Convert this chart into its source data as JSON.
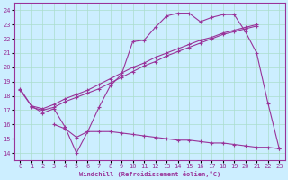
{
  "xlabel": "Windchill (Refroidissement éolien,°C)",
  "bg_color": "#cceeff",
  "line_color": "#993399",
  "grid_color": "#aaddcc",
  "x_ticks": [
    0,
    1,
    2,
    3,
    4,
    5,
    6,
    7,
    8,
    9,
    10,
    11,
    12,
    13,
    14,
    15,
    16,
    17,
    18,
    19,
    20,
    21,
    22,
    23
  ],
  "y_ticks": [
    14,
    15,
    16,
    17,
    18,
    19,
    20,
    21,
    22,
    23,
    24
  ],
  "xlim": [
    -0.5,
    23.5
  ],
  "ylim": [
    13.5,
    24.5
  ],
  "line_wavy_x": [
    0,
    1,
    2,
    3,
    4,
    5,
    6,
    7,
    8,
    9,
    10,
    11,
    12,
    13,
    14,
    15,
    16,
    17,
    18,
    19,
    20,
    21,
    22,
    23
  ],
  "line_wavy_y": [
    18.5,
    17.3,
    16.8,
    17.1,
    15.8,
    14.0,
    15.5,
    17.2,
    18.7,
    19.5,
    21.8,
    21.9,
    22.8,
    23.6,
    23.8,
    23.8,
    23.2,
    23.5,
    23.7,
    23.7,
    22.5,
    21.0,
    17.5,
    14.3
  ],
  "line_diag1_x": [
    0,
    1,
    2,
    3,
    4,
    5,
    6,
    7,
    8,
    9,
    10,
    11,
    12,
    13,
    14,
    15,
    16,
    17,
    18,
    19,
    20,
    21
  ],
  "line_diag1_y": [
    18.4,
    17.3,
    17.1,
    17.4,
    17.8,
    18.1,
    18.4,
    18.8,
    19.2,
    19.6,
    20.0,
    20.3,
    20.7,
    21.0,
    21.3,
    21.6,
    21.9,
    22.1,
    22.4,
    22.6,
    22.8,
    23.0
  ],
  "line_diag2_x": [
    1,
    2,
    3,
    4,
    5,
    6,
    7,
    8,
    9,
    10,
    11,
    12,
    13,
    14,
    15,
    16,
    17,
    18,
    19,
    20,
    21
  ],
  "line_diag2_y": [
    17.2,
    17.0,
    17.2,
    17.6,
    17.9,
    18.2,
    18.5,
    18.9,
    19.3,
    19.7,
    20.1,
    20.4,
    20.8,
    21.1,
    21.4,
    21.7,
    22.0,
    22.3,
    22.5,
    22.7,
    22.9
  ],
  "line_low_x": [
    3,
    4,
    5,
    6,
    7,
    8,
    9,
    10,
    11,
    12,
    13,
    14,
    15,
    16,
    17,
    18,
    19,
    20,
    21,
    22,
    23
  ],
  "line_low_y": [
    16.0,
    15.7,
    15.1,
    15.5,
    15.5,
    15.5,
    15.4,
    15.3,
    15.2,
    15.1,
    15.0,
    14.9,
    14.9,
    14.8,
    14.7,
    14.7,
    14.6,
    14.5,
    14.4,
    14.4,
    14.3
  ]
}
